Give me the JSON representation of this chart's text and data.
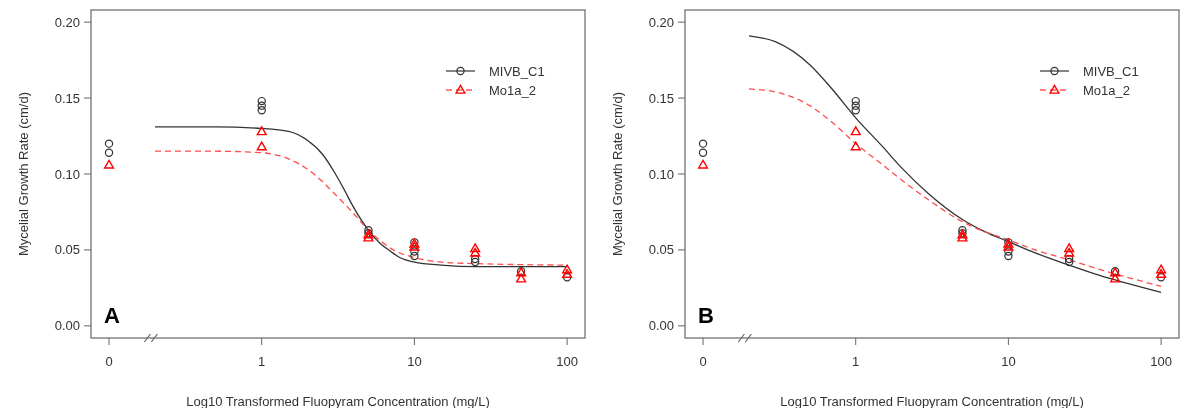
{
  "chart_data": [
    {
      "type": "scatter",
      "xlabel": "Log10 Transformed Fluopyram Concentration (mg/L)",
      "ylabel": "Mycelial Growth Rate (cm/d)",
      "log": "x",
      "legend": "top right",
      "xlim": [
        0.0762,
        131
      ],
      "xticks": [
        {
          "value": 0.1,
          "label": "0"
        },
        1,
        10,
        100
      ],
      "ylim": [
        -0.008,
        0.208
      ],
      "yticks": [
        {
          "value": 0,
          "label": "0.00"
        },
        {
          "value": 0.05,
          "label": "0.05"
        },
        {
          "value": 0.1,
          "label": "0.10"
        },
        {
          "value": 0.15,
          "label": "0.15"
        },
        {
          "value": 0.2,
          "label": "0.20"
        }
      ],
      "annotations": [
        "A"
      ],
      "series": [
        {
          "type": "line",
          "color": "#333333",
          "line_style": "solid",
          "x": [
            0.2,
            0.5,
            1,
            1.5,
            2,
            2.5,
            3,
            3.5,
            4,
            5,
            6,
            7,
            8,
            10,
            15,
            25,
            100
          ],
          "values": [
            0.131,
            0.131,
            0.13,
            0.128,
            0.122,
            0.113,
            0.101,
            0.089,
            0.078,
            0.063,
            0.054,
            0.049,
            0.045,
            0.042,
            0.04,
            0.039,
            0.039
          ]
        },
        {
          "type": "line",
          "color": "#ff4d4d",
          "line_style": "dashed",
          "x": [
            0.2,
            0.5,
            1,
            1.5,
            2,
            2.5,
            3,
            4,
            5,
            6,
            7,
            10,
            15,
            25,
            100
          ],
          "values": [
            0.115,
            0.115,
            0.114,
            0.11,
            0.103,
            0.095,
            0.087,
            0.074,
            0.063,
            0.056,
            0.051,
            0.045,
            0.042,
            0.041,
            0.04
          ]
        },
        {
          "type": "scatter",
          "name": "MIVB_C1",
          "color": "#333333",
          "marker": "circle",
          "x": [
            0.1,
            0.1,
            1,
            1,
            1,
            5,
            5,
            10,
            10,
            10,
            25,
            25,
            50,
            100
          ],
          "values": [
            0.12,
            0.114,
            0.148,
            0.145,
            0.142,
            0.063,
            0.061,
            0.055,
            0.049,
            0.046,
            0.044,
            0.042,
            0.036,
            0.032
          ]
        },
        {
          "type": "scatter",
          "name": "Mo1a_2",
          "color": "#ff0000",
          "marker": "triangle",
          "x": [
            0.1,
            1,
            1,
            5,
            5,
            10,
            10,
            25,
            25,
            50,
            50,
            100,
            100
          ],
          "values": [
            0.106,
            0.128,
            0.118,
            0.06,
            0.058,
            0.054,
            0.052,
            0.051,
            0.048,
            0.035,
            0.031,
            0.037,
            0.034
          ]
        }
      ]
    },
    {
      "type": "scatter",
      "xlabel": "Log10 Transformed Fluopyram Concentration (mg/L)",
      "ylabel": "Mycelial Growth Rate (cm/d)",
      "log": "x",
      "legend": "top right",
      "xlim": [
        0.0762,
        131
      ],
      "xticks": [
        {
          "value": 0.1,
          "label": "0"
        },
        1,
        10,
        100
      ],
      "ylim": [
        -0.008,
        0.208
      ],
      "yticks": [
        {
          "value": 0,
          "label": "0.00"
        },
        {
          "value": 0.05,
          "label": "0.05"
        },
        {
          "value": 0.1,
          "label": "0.10"
        },
        {
          "value": 0.15,
          "label": "0.15"
        },
        {
          "value": 0.2,
          "label": "0.20"
        }
      ],
      "annotations": [
        "B"
      ],
      "series": [
        {
          "type": "line",
          "color": "#333333",
          "line_style": "solid",
          "x": [
            0.2,
            0.3,
            0.5,
            0.7,
            1,
            1.5,
            2,
            3,
            5,
            7,
            10,
            15,
            25,
            40,
            60,
            100
          ],
          "values": [
            0.191,
            0.187,
            0.172,
            0.156,
            0.137,
            0.118,
            0.104,
            0.087,
            0.07,
            0.062,
            0.0555,
            0.048,
            0.04,
            0.033,
            0.028,
            0.022
          ]
        },
        {
          "type": "line",
          "color": "#ff4d4d",
          "line_style": "dashed",
          "x": [
            0.2,
            0.3,
            0.5,
            0.7,
            1,
            1.5,
            2,
            3,
            5,
            7,
            10,
            15,
            25,
            40,
            60,
            100
          ],
          "values": [
            0.156,
            0.154,
            0.145,
            0.134,
            0.12,
            0.106,
            0.096,
            0.083,
            0.0686,
            0.062,
            0.0566,
            0.05,
            0.0434,
            0.037,
            0.032,
            0.026
          ]
        },
        {
          "type": "scatter",
          "name": "MIVB_C1",
          "color": "#333333",
          "marker": "circle",
          "x": [
            0.1,
            0.1,
            1,
            1,
            1,
            5,
            5,
            10,
            10,
            10,
            25,
            25,
            50,
            100
          ],
          "values": [
            0.12,
            0.114,
            0.148,
            0.145,
            0.142,
            0.063,
            0.061,
            0.055,
            0.049,
            0.046,
            0.044,
            0.042,
            0.036,
            0.032
          ]
        },
        {
          "type": "scatter",
          "name": "Mo1a_2",
          "color": "#ff0000",
          "marker": "triangle",
          "x": [
            0.1,
            1,
            1,
            5,
            5,
            10,
            10,
            25,
            25,
            50,
            50,
            100,
            100
          ],
          "values": [
            0.106,
            0.128,
            0.118,
            0.06,
            0.058,
            0.054,
            0.052,
            0.051,
            0.048,
            0.035,
            0.031,
            0.037,
            0.034
          ]
        }
      ]
    }
  ]
}
